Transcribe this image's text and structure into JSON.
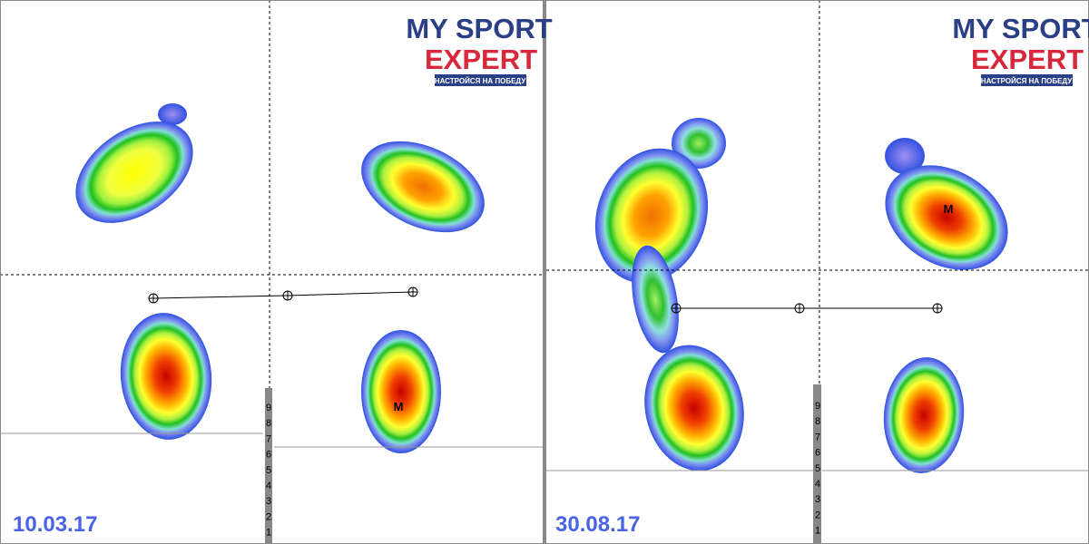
{
  "panels": [
    {
      "date": "10.03.17",
      "logo": {
        "line1": "MY SPORT",
        "line2": "EXPERT",
        "tagline": "НАСТРОЙСЯ НА ПОБЕДУ"
      },
      "marker": "M",
      "scale": [
        9,
        8,
        7,
        6,
        5,
        4,
        3,
        2,
        1
      ]
    },
    {
      "date": "30.08.17",
      "logo": {
        "line1": "MY SPORT",
        "line2": "EXPERT",
        "tagline": "НАСТРОЙСЯ НА ПОБЕДУ"
      },
      "marker": "M",
      "scale": [
        9,
        8,
        7,
        6,
        5,
        4,
        3,
        2,
        1
      ]
    }
  ]
}
